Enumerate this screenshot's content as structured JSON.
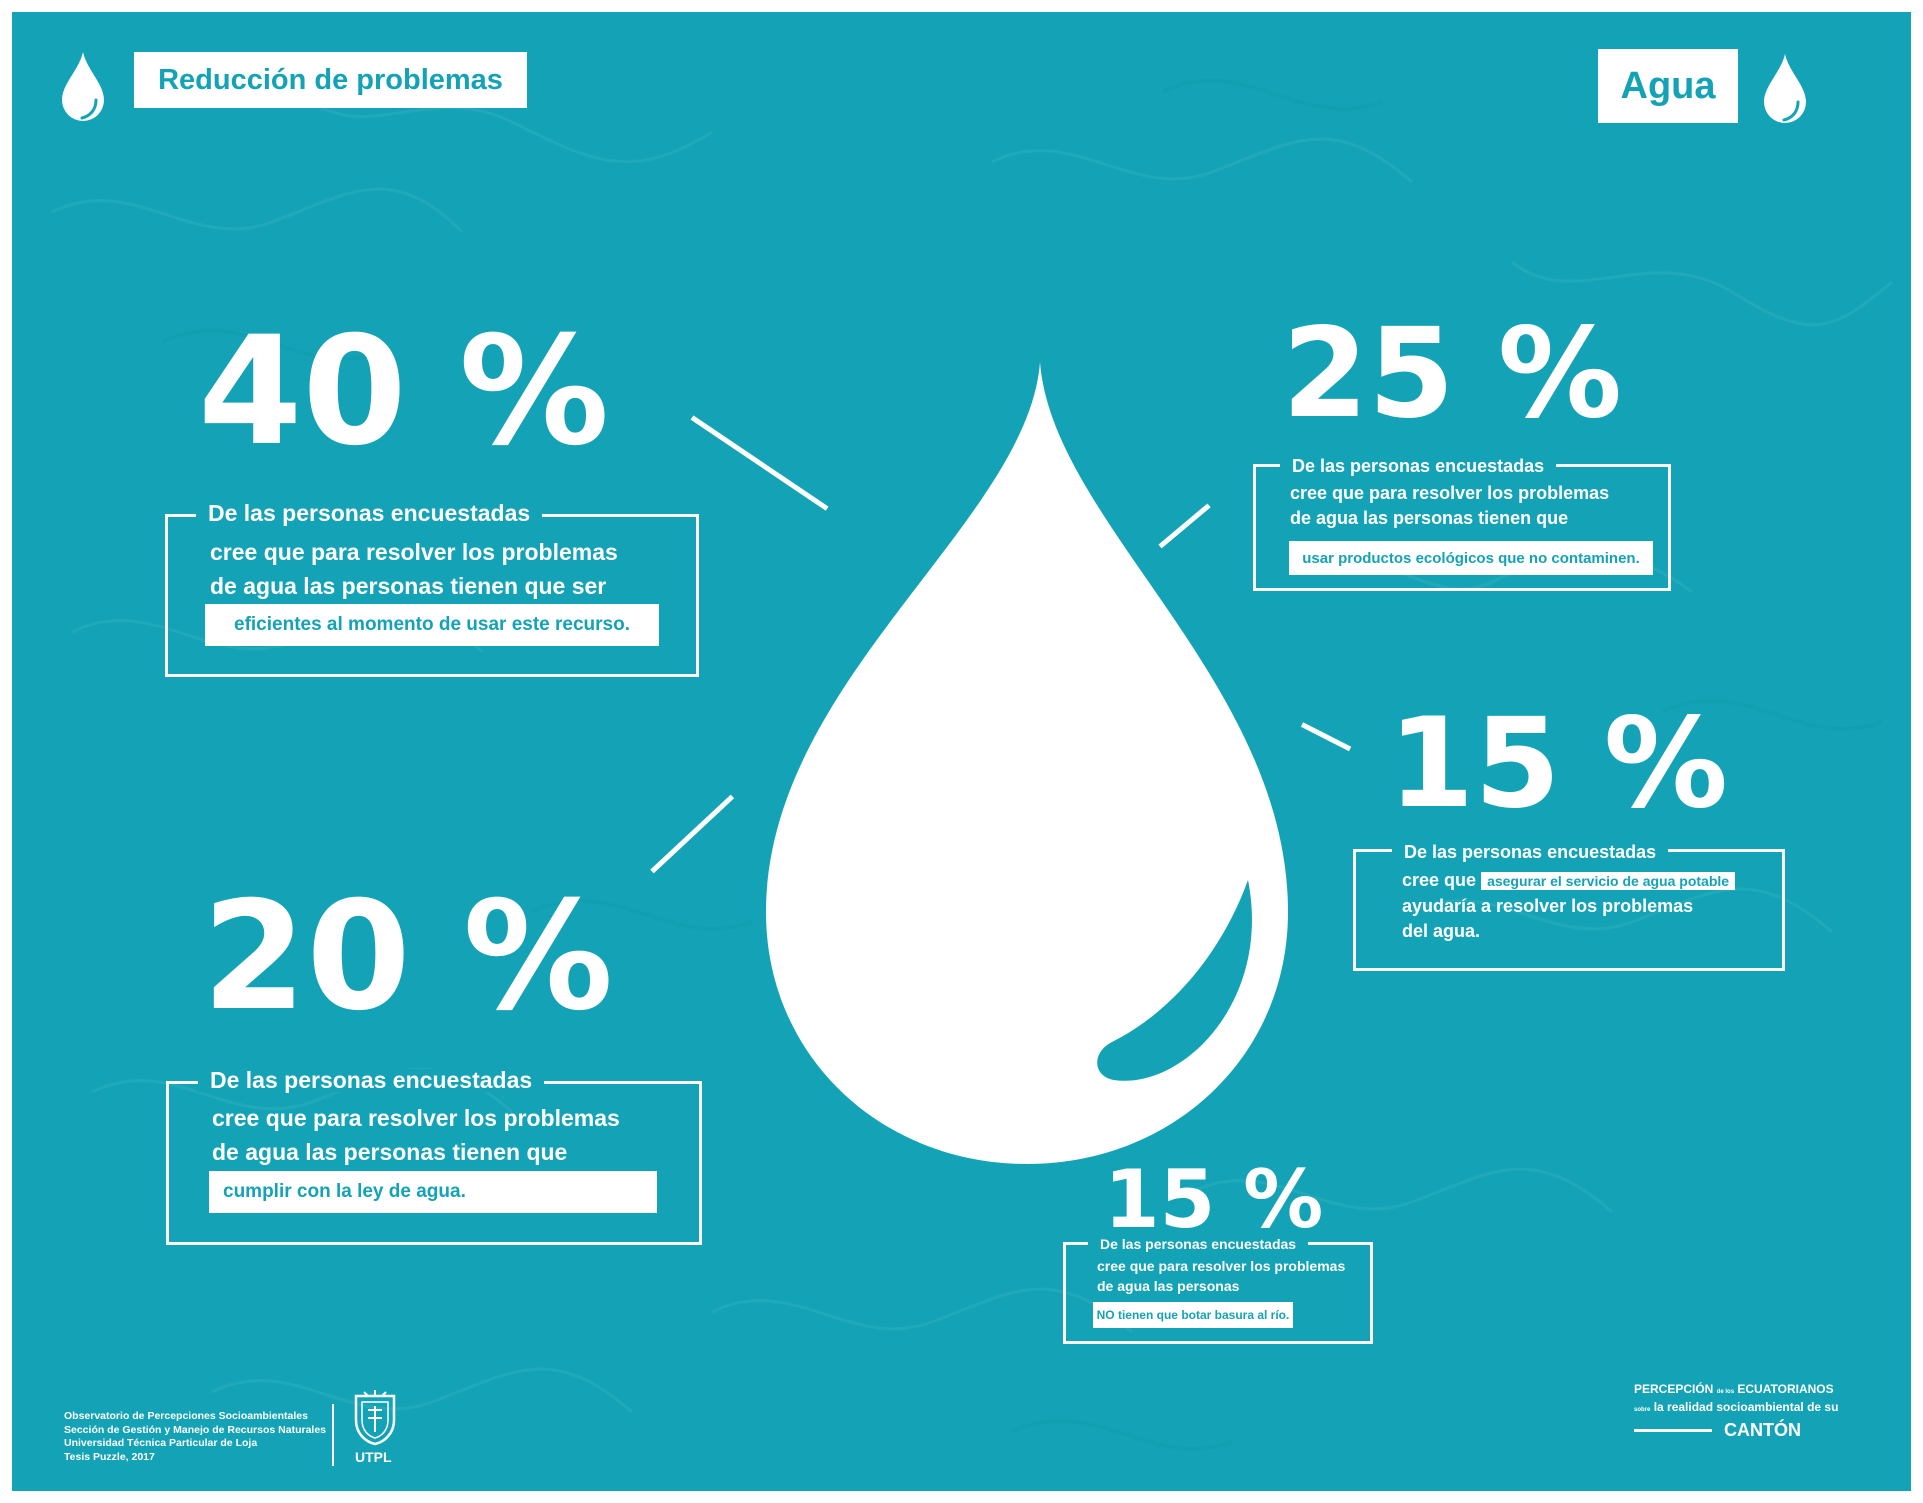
{
  "header": {
    "left_label": "Reducción de problemas",
    "right_label": "Agua"
  },
  "colors": {
    "background": "#14a3b6",
    "foreground": "#ffffff"
  },
  "icons": [
    "water-drop-icon",
    "university-crest-icon"
  ],
  "stats": [
    {
      "percent": "40 %",
      "lines": [
        "De las personas encuestadas",
        "cree que para resolver los problemas",
        "de agua las personas tienen que ser"
      ],
      "highlight": "eficientes al momento de usar este recurso."
    },
    {
      "percent": "25 %",
      "lines": [
        "De las personas encuestadas",
        "cree que para resolver los problemas",
        "de agua las personas tienen que"
      ],
      "highlight": "usar productos ecológicos que no contaminen."
    },
    {
      "percent": "15 %",
      "lines": [
        "De las personas encuestadas",
        "cree que",
        "ayudaría a resolver los problemas",
        "del agua."
      ],
      "highlight": "asegurar el servicio de agua potable"
    },
    {
      "percent": "20 %",
      "lines": [
        "De las personas encuestadas",
        "cree que para resolver los problemas",
        "de agua las personas tienen que"
      ],
      "highlight": "cumplir con la ley de agua."
    },
    {
      "percent": "15 %",
      "lines": [
        "De las personas encuestadas",
        "cree que para resolver los problemas",
        "de agua las personas"
      ],
      "highlight": "NO tienen que botar basura al río."
    }
  ],
  "footer": {
    "credits": [
      "Observatorio de Percepciones Socioambientales",
      "Sección de Gestión y Manejo de Recursos Naturales",
      "Universidad Técnica Particular de Loja",
      "Tesis Puzzle, 2017"
    ],
    "university_short": "UTPL",
    "brand": {
      "word1": "PERCEPCIÓN",
      "small1": "de los",
      "word2": "ECUATORIANOS",
      "small2": "sobre",
      "line2": "la realidad socioambiental de su",
      "word3": "CANTÓN"
    }
  }
}
